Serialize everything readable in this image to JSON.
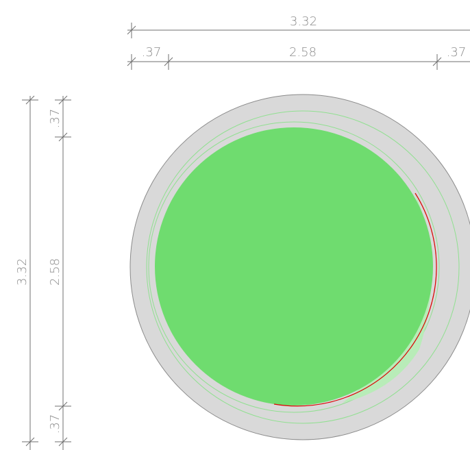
{
  "dimensions": {
    "top_overall": "3.32",
    "top_left_offset": ".37",
    "top_inner": "2.58",
    "top_right_offset": ".37",
    "left_overall": "3.32",
    "left_inner": "2.58",
    "left_top_offset": ".37",
    "left_bottom_offset": ".37"
  },
  "colors": {
    "ring": "#d9d9d9",
    "fill": "#6fdc6f",
    "outline": "#90e090",
    "highlight": "#dd0000",
    "dimension": "#6f6f6f"
  }
}
